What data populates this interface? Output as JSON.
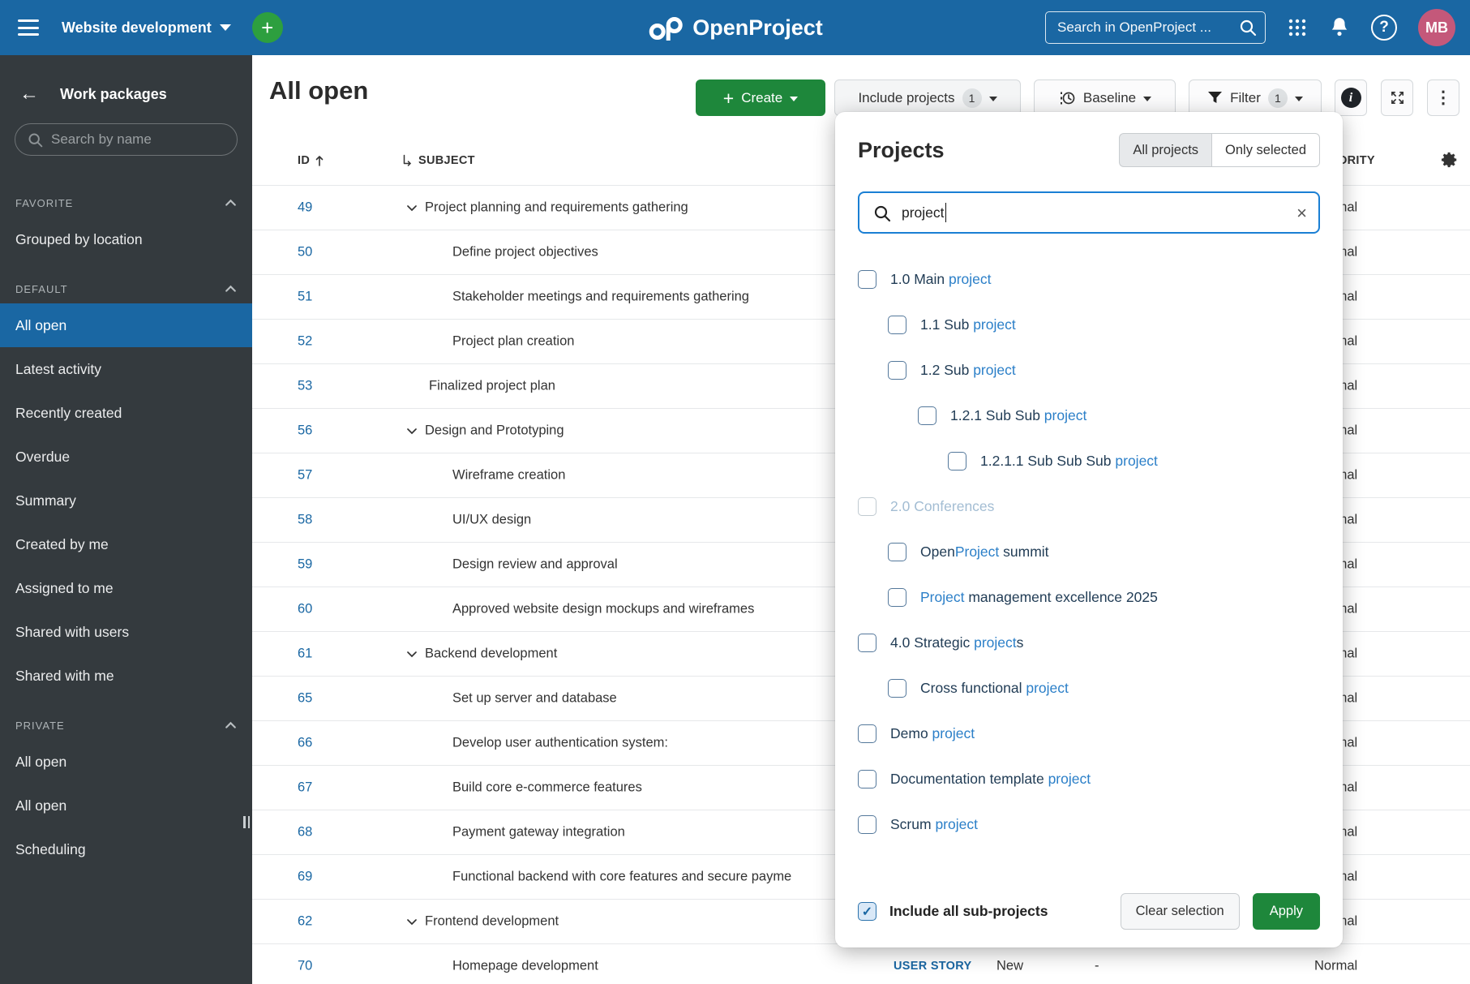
{
  "header": {
    "project_selector": "Website development",
    "logo_text": "OpenProject",
    "search_placeholder": "Search in OpenProject ...",
    "avatar_initials": "MB"
  },
  "sidebar": {
    "title": "Work packages",
    "search_placeholder": "Search by name",
    "sections": [
      {
        "label": "FAVORITE",
        "items": [
          {
            "label": "Grouped by location"
          }
        ]
      },
      {
        "label": "DEFAULT",
        "items": [
          {
            "label": "All open",
            "selected": true
          },
          {
            "label": "Latest activity"
          },
          {
            "label": "Recently created"
          },
          {
            "label": "Overdue"
          },
          {
            "label": "Summary"
          },
          {
            "label": "Created by me"
          },
          {
            "label": "Assigned to me"
          },
          {
            "label": "Shared with users"
          },
          {
            "label": "Shared with me"
          }
        ]
      },
      {
        "label": "PRIVATE",
        "items": [
          {
            "label": "All open"
          },
          {
            "label": "All open"
          },
          {
            "label": "Scheduling"
          }
        ]
      }
    ]
  },
  "toolbar": {
    "page_title": "All open",
    "create_label": "Create",
    "include_projects_label": "Include projects",
    "include_projects_count": "1",
    "baseline_label": "Baseline",
    "filter_label": "Filter",
    "filter_count": "1"
  },
  "table": {
    "columns": {
      "id": "ID",
      "subject": "SUBJECT",
      "priority": "PRIORITY"
    },
    "rows": [
      {
        "id": "49",
        "subject": "Project planning and requirements gathering",
        "level": 0,
        "parent": true,
        "priority": "Normal"
      },
      {
        "id": "50",
        "subject": "Define project objectives",
        "level": 1,
        "priority": "Normal"
      },
      {
        "id": "51",
        "subject": "Stakeholder meetings and requirements gathering",
        "level": 1,
        "priority": "Normal"
      },
      {
        "id": "52",
        "subject": "Project plan creation",
        "level": 1,
        "priority": "Normal"
      },
      {
        "id": "53",
        "subject": "Finalized project plan",
        "level": 0,
        "priority": "Normal"
      },
      {
        "id": "56",
        "subject": "Design and Prototyping",
        "level": 0,
        "parent": true,
        "priority": "Normal"
      },
      {
        "id": "57",
        "subject": "Wireframe creation",
        "level": 1,
        "priority": "Normal"
      },
      {
        "id": "58",
        "subject": "UI/UX design",
        "level": 1,
        "priority": "Normal"
      },
      {
        "id": "59",
        "subject": "Design review and approval",
        "level": 1,
        "priority": "Normal"
      },
      {
        "id": "60",
        "subject": "Approved website design mockups and wireframes",
        "level": 1,
        "priority": "Normal"
      },
      {
        "id": "61",
        "subject": "Backend development",
        "level": 0,
        "parent": true,
        "priority": "Normal"
      },
      {
        "id": "65",
        "subject": "Set up server and database",
        "level": 1,
        "priority": "Normal"
      },
      {
        "id": "66",
        "subject": "Develop user authentication system:",
        "level": 1,
        "priority": "Normal"
      },
      {
        "id": "67",
        "subject": "Build core e-commerce features",
        "level": 1,
        "priority": "Normal"
      },
      {
        "id": "68",
        "subject": "Payment gateway integration",
        "level": 1,
        "priority": "Normal"
      },
      {
        "id": "69",
        "subject": "Functional backend with core features and secure payme",
        "level": 1,
        "priority": "Normal"
      },
      {
        "id": "62",
        "subject": "Frontend development",
        "level": 0,
        "parent": true,
        "priority": "Normal"
      },
      {
        "id": "70",
        "subject": "Homepage development",
        "level": 1,
        "type": "USER STORY",
        "status": "New",
        "assignee": "-",
        "priority": "Normal"
      }
    ]
  },
  "modal": {
    "title": "Projects",
    "toggle": {
      "all": "All projects",
      "selected": "Only selected",
      "active": "all"
    },
    "search_value": "project",
    "projects": [
      {
        "level": 0,
        "parts": [
          {
            "t": "1.0 Main "
          },
          {
            "t": "project",
            "h": true
          }
        ]
      },
      {
        "level": 1,
        "parts": [
          {
            "t": "1.1 Sub "
          },
          {
            "t": "project",
            "h": true
          }
        ]
      },
      {
        "level": 1,
        "parts": [
          {
            "t": "1.2 Sub "
          },
          {
            "t": "project",
            "h": true
          }
        ]
      },
      {
        "level": 2,
        "parts": [
          {
            "t": "1.2.1 Sub Sub "
          },
          {
            "t": "project",
            "h": true
          }
        ]
      },
      {
        "level": 3,
        "parts": [
          {
            "t": "1.2.1.1 Sub Sub Sub "
          },
          {
            "t": "project",
            "h": true
          }
        ]
      },
      {
        "level": 0,
        "disabled": true,
        "parts": [
          {
            "t": "2.0 Conferences"
          }
        ]
      },
      {
        "level": 1,
        "parts": [
          {
            "t": "Open"
          },
          {
            "t": "Project",
            "h": true
          },
          {
            "t": " summit"
          }
        ]
      },
      {
        "level": 1,
        "parts": [
          {
            "t": "Project",
            "h": true
          },
          {
            "t": " management excellence 2025"
          }
        ]
      },
      {
        "level": 0,
        "parts": [
          {
            "t": "4.0 Strategic "
          },
          {
            "t": "project",
            "h": true
          },
          {
            "t": "s"
          }
        ]
      },
      {
        "level": 1,
        "parts": [
          {
            "t": "Cross functional "
          },
          {
            "t": "project",
            "h": true
          }
        ]
      },
      {
        "level": 0,
        "parts": [
          {
            "t": "Demo "
          },
          {
            "t": "project",
            "h": true
          }
        ]
      },
      {
        "level": 0,
        "parts": [
          {
            "t": "Documentation template "
          },
          {
            "t": "project",
            "h": true
          }
        ]
      },
      {
        "level": 0,
        "parts": [
          {
            "t": "Scrum "
          },
          {
            "t": "project",
            "h": true
          }
        ]
      }
    ],
    "include_subprojects_label": "Include all sub-projects",
    "clear_label": "Clear selection",
    "apply_label": "Apply"
  },
  "colors": {
    "accent": "#1A67A3",
    "green": "#1E873B",
    "avatar": "#C4587A",
    "sidebar": "#343A3E"
  }
}
